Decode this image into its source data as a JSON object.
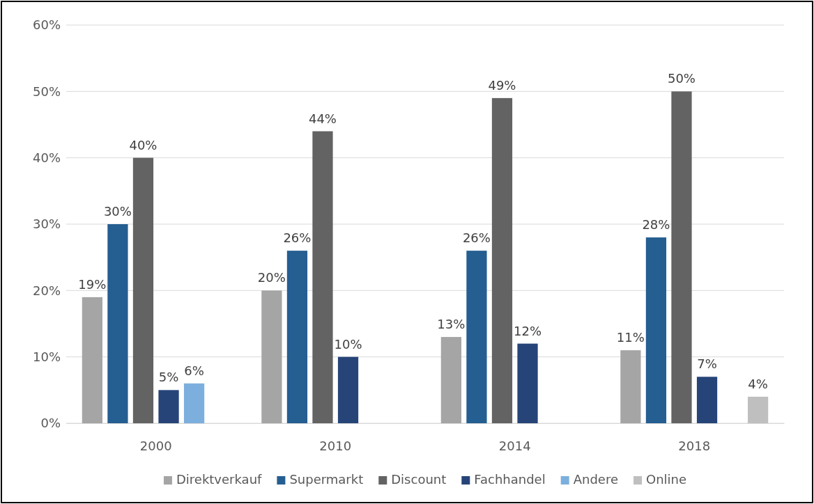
{
  "chart_data": {
    "type": "bar",
    "categories": [
      "2000",
      "2010",
      "2014",
      "2018"
    ],
    "series": [
      {
        "name": "Direktverkauf",
        "color": "#a5a5a5",
        "values": [
          19,
          20,
          13,
          11
        ],
        "value_labels": [
          "19%",
          "20%",
          "13%",
          "11%"
        ]
      },
      {
        "name": "Supermarkt",
        "color": "#255e91",
        "values": [
          30,
          26,
          26,
          28
        ],
        "value_labels": [
          "30%",
          "26%",
          "26%",
          "28%"
        ]
      },
      {
        "name": "Discount",
        "color": "#636363",
        "values": [
          40,
          44,
          49,
          50
        ],
        "value_labels": [
          "40%",
          "44%",
          "49%",
          "50%"
        ]
      },
      {
        "name": "Fachhandel",
        "color": "#264478",
        "values": [
          5,
          10,
          12,
          7
        ],
        "value_labels": [
          "5%",
          "10%",
          "12%",
          "7%"
        ]
      },
      {
        "name": "Andere",
        "color": "#7cafdd",
        "values": [
          6,
          null,
          null,
          null
        ],
        "value_labels": [
          "6%",
          null,
          null,
          null
        ]
      },
      {
        "name": "Online",
        "color": "#bfbfbf",
        "values": [
          null,
          null,
          null,
          4
        ],
        "value_labels": [
          null,
          null,
          null,
          "4%"
        ]
      }
    ],
    "ylim": [
      0,
      60
    ],
    "yticks": [
      {
        "value": 0,
        "label": "0%"
      },
      {
        "value": 10,
        "label": "10%"
      },
      {
        "value": 20,
        "label": "20%"
      },
      {
        "value": 30,
        "label": "30%"
      },
      {
        "value": 40,
        "label": "40%"
      },
      {
        "value": 50,
        "label": "50%"
      },
      {
        "value": 60,
        "label": "60%"
      }
    ],
    "grid": "y",
    "legend": "bottom"
  }
}
